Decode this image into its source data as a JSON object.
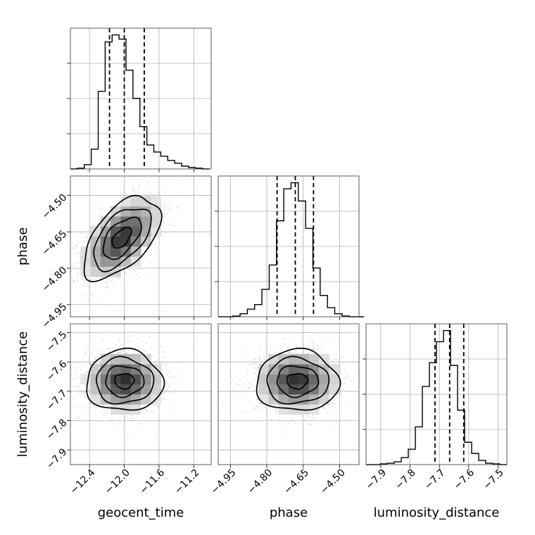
{
  "chart_data": {
    "type": "corner",
    "grid": true,
    "parameters": [
      {
        "name": "geocent_time",
        "label": "geocent_time",
        "range": [
          -12.62,
          -11.0
        ],
        "ticks": [
          -12.4,
          -12.0,
          -11.6,
          -11.2
        ],
        "tick_labels": [
          "−12.4",
          "−12.0",
          "−11.6",
          "−11.2"
        ],
        "quantiles": [
          -12.17,
          -12.0,
          -11.77
        ],
        "hist_edges": [
          -12.62,
          -12.54,
          -12.46,
          -12.38,
          -12.3,
          -12.22,
          -12.14,
          -12.06,
          -11.98,
          -11.9,
          -11.82,
          -11.74,
          -11.66,
          -11.58,
          -11.5,
          -11.42,
          -11.34,
          -11.26,
          -11.18,
          -11.1,
          -11.02
        ],
        "hist_counts": [
          0,
          0.5,
          3,
          14,
          55,
          90,
          95,
          92,
          70,
          50,
          30,
          17,
          12,
          9,
          6,
          4,
          2,
          1,
          0.5,
          0
        ]
      },
      {
        "name": "phase",
        "label": "phase",
        "range": [
          -5.0,
          -4.42
        ],
        "ticks": [
          -4.95,
          -4.8,
          -4.65,
          -4.5
        ],
        "tick_labels": [
          "−4.95",
          "−4.80",
          "−4.65",
          "−4.50"
        ],
        "quantiles": [
          -4.7575,
          -4.6825,
          -4.6075
        ],
        "hist_edges": [
          -5.0,
          -4.97,
          -4.94,
          -4.91,
          -4.88,
          -4.85,
          -4.82,
          -4.79,
          -4.76,
          -4.73,
          -4.7,
          -4.67,
          -4.64,
          -4.61,
          -4.58,
          -4.55,
          -4.52,
          -4.49,
          -4.46,
          -4.43,
          -4.4
        ],
        "hist_counts": [
          0,
          0,
          0.5,
          2,
          5,
          8,
          18,
          34,
          63,
          84,
          88,
          76,
          58,
          32,
          14,
          6,
          2,
          0.5,
          0,
          0
        ]
      },
      {
        "name": "luminosity_distance",
        "label": "luminosity_distance",
        "range": [
          -7.95,
          -7.47
        ],
        "ticks": [
          -7.9,
          -7.8,
          -7.7,
          -7.6,
          -7.5
        ],
        "tick_labels": [
          "−7.9",
          "−7.8",
          "−7.7",
          "−7.6",
          "−7.5"
        ],
        "quantiles": [
          -7.715,
          -7.665,
          -7.617
        ],
        "hist_edges": [
          -7.95,
          -7.926,
          -7.902,
          -7.878,
          -7.854,
          -7.83,
          -7.806,
          -7.782,
          -7.758,
          -7.734,
          -7.71,
          -7.686,
          -7.662,
          -7.638,
          -7.614,
          -7.59,
          -7.566,
          -7.542,
          -7.518,
          -7.494,
          -7.47
        ],
        "hist_counts": [
          0,
          0,
          0.5,
          1,
          2,
          5,
          11,
          27,
          56,
          73,
          88,
          96,
          71,
          39,
          16,
          8,
          3,
          1,
          0.5,
          0
        ]
      }
    ],
    "joint": [
      {
        "x_param": "geocent_time",
        "y_param": "phase",
        "mean": [
          -12.03,
          -4.675
        ],
        "std": [
          0.22,
          0.085
        ],
        "corr": 0.55,
        "contour_levels_sigma": [
          0.5,
          1.0,
          1.5,
          2.0
        ]
      },
      {
        "x_param": "geocent_time",
        "y_param": "luminosity_distance",
        "mean": [
          -12.0,
          -7.665
        ],
        "std": [
          0.22,
          0.052
        ],
        "corr": 0.0,
        "contour_levels_sigma": [
          0.5,
          1.0,
          1.5,
          2.0
        ]
      },
      {
        "x_param": "phase",
        "y_param": "luminosity_distance",
        "mean": [
          -4.675,
          -7.665
        ],
        "std": [
          0.085,
          0.052
        ],
        "corr": 0.0,
        "contour_levels_sigma": [
          0.5,
          1.0,
          1.5,
          2.0
        ]
      }
    ]
  }
}
